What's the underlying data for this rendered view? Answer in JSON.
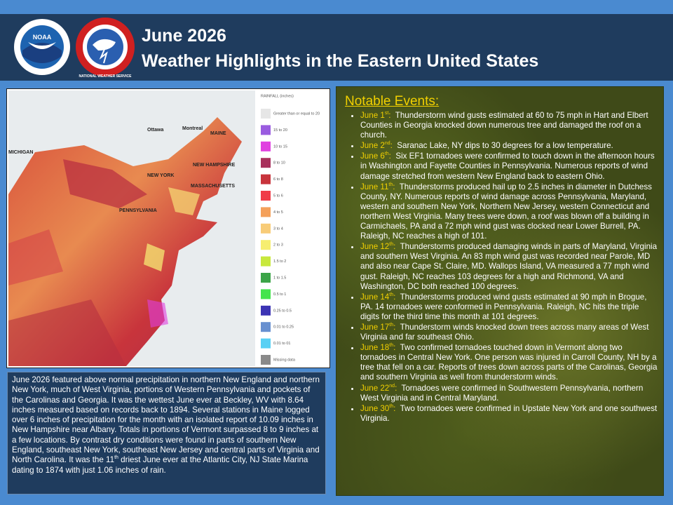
{
  "header": {
    "title": "June 2026",
    "subtitle": "Weather Highlights in the Eastern United States",
    "logos": [
      "NOAA",
      "NATIONAL WEATHER SERVICE"
    ]
  },
  "map": {
    "labels": [
      "Ottawa",
      "Montreal",
      "MAINE",
      "NEW HAMPSHIRE",
      "NEW YORK",
      "MASSACHUSETTS",
      "PENNSYLVANIA",
      "MICHIGAN"
    ],
    "legend": {
      "title": "RAINFALL (inches)",
      "items": [
        {
          "label": "Greater than or equal to 20",
          "color": "#e6e6e6"
        },
        {
          "label": "15 to 20",
          "color": "#9a5ce0"
        },
        {
          "label": "10 to 15",
          "color": "#e040e0"
        },
        {
          "label": "8 to 10",
          "color": "#a8305c"
        },
        {
          "label": "6 to 8",
          "color": "#c8343c"
        },
        {
          "label": "5 to 6",
          "color": "#f03c48"
        },
        {
          "label": "4 to 5",
          "color": "#f4a05a"
        },
        {
          "label": "3 to 4",
          "color": "#f8cc78"
        },
        {
          "label": "2 to 3",
          "color": "#f6ee70"
        },
        {
          "label": "1.5 to 2",
          "color": "#c8e83c"
        },
        {
          "label": "1 to 1.5",
          "color": "#3ca448"
        },
        {
          "label": "0.5 to 1",
          "color": "#44e44c"
        },
        {
          "label": "0.25 to 0.5",
          "color": "#3c34b4"
        },
        {
          "label": "0.01 to 0.25",
          "color": "#6890d0"
        },
        {
          "label": "0.01 to 01",
          "color": "#58d0f4"
        },
        {
          "label": "Missing data",
          "color": "#8a8a8a"
        }
      ]
    }
  },
  "summary": [
    "June 2026 featured above normal precipitation in northern New England and northern New York, much of West Virginia, portions of Western Pennsylvania and pockets of the Carolinas and Georgia. It was the wettest June ever at Beckley, WV with 8.64 inches measured based on records back to 1894. Several stations in Maine logged over 6 inches of precipitation for the month with an isolated report of 10.09 inches in New Hampshire near Albany. Totals in portions of Vermont surpassed 8 to 9 inches at a few locations. By contrast dry conditions were found in parts of southern New England, southeast New York, southeast New Jersey and central parts of Virginia and North Carolina. It was the 11",
    "th",
    " driest June ever at the Atlantic City, NJ State Marina dating to 1874 with just 1.06 inches of rain."
  ],
  "events": {
    "heading": "Notable Events:",
    "items": [
      {
        "day": "June 1",
        "ordinal": "st",
        "punct": ":",
        "text": "Thunderstorm wind gusts estimated at 60 to 75 mph in Hart and Elbert Counties in Georgia knocked down numerous tree and damaged the roof on a church."
      },
      {
        "day": "June 2",
        "ordinal": "nd",
        "punct": ":",
        "text": "Saranac Lake, NY dips to 30 degrees for a low temperature."
      },
      {
        "day": "June 6",
        "ordinal": "th",
        "punct": ":",
        "text": "Six EF1 tornadoes were confirmed to touch down in the afternoon hours in Washington and Fayette Counties in Pennsylvania. Numerous reports of wind damage stretched from western New England back to eastern Ohio."
      },
      {
        "day": "June 11",
        "ordinal": "th",
        "punct": ":",
        "text": "Thunderstorms produced hail up to 2.5 inches in diameter in Dutchess County, NY. Numerous reports of wind damage across Pennsylvania, Maryland, western and southern New York, Northern New Jersey, western Connecticut and northern West Virginia. Many trees were down, a roof was blown off a building in Carmichaels, PA and a 72 mph wind gust was clocked near Lower Burrell, PA. Raleigh, NC reaches a high of 101."
      },
      {
        "day": "June 12",
        "ordinal": "th",
        "punct": ":",
        "text": "Thunderstorms produced damaging winds in parts of Maryland, Virginia and southern West Virginia. An 83 mph wind gust was recorded near Parole, MD and also near Cape St. Claire, MD. Wallops Island, VA measured a 77 mph wind gust. Raleigh, NC reaches 103 degrees for a high and Richmond, VA and Washington, DC both reached 100 degrees."
      },
      {
        "day": "June 14",
        "ordinal": "th",
        "punct": ":",
        "text": "Thunderstorms produced wind gusts estimated at 90 mph in Brogue, PA. 14 tornadoes were conformed in Pennsylvania. Raleigh, NC hits the triple digits for the third time this month at 101 degrees."
      },
      {
        "day": "June 17",
        "ordinal": "th",
        "punct": ":",
        "text": "Thunderstorm winds knocked down trees across many areas of West Virginia and far southeast Ohio."
      },
      {
        "day": "June 18",
        "ordinal": "th",
        "punct": ":",
        "text": "Two confirmed tornadoes touched down in Vermont along two tornadoes in Central New York. One person was injured in Carroll County, NH by a tree that fell on a car. Reports of trees down across parts of the Carolinas, Georgia and southern Virginia as well from thunderstorm winds."
      },
      {
        "day": "June 22",
        "ordinal": "nd",
        "punct": ":",
        "text": "Tornadoes were confirmed in Southwestern Pennsylvania, northern West Virginia and in Central Maryland."
      },
      {
        "day": "June 30",
        "ordinal": "th",
        "punct": ":",
        "text": "Two tornadoes were confirmed in Upstate New York and one southwest Virginia."
      }
    ]
  }
}
